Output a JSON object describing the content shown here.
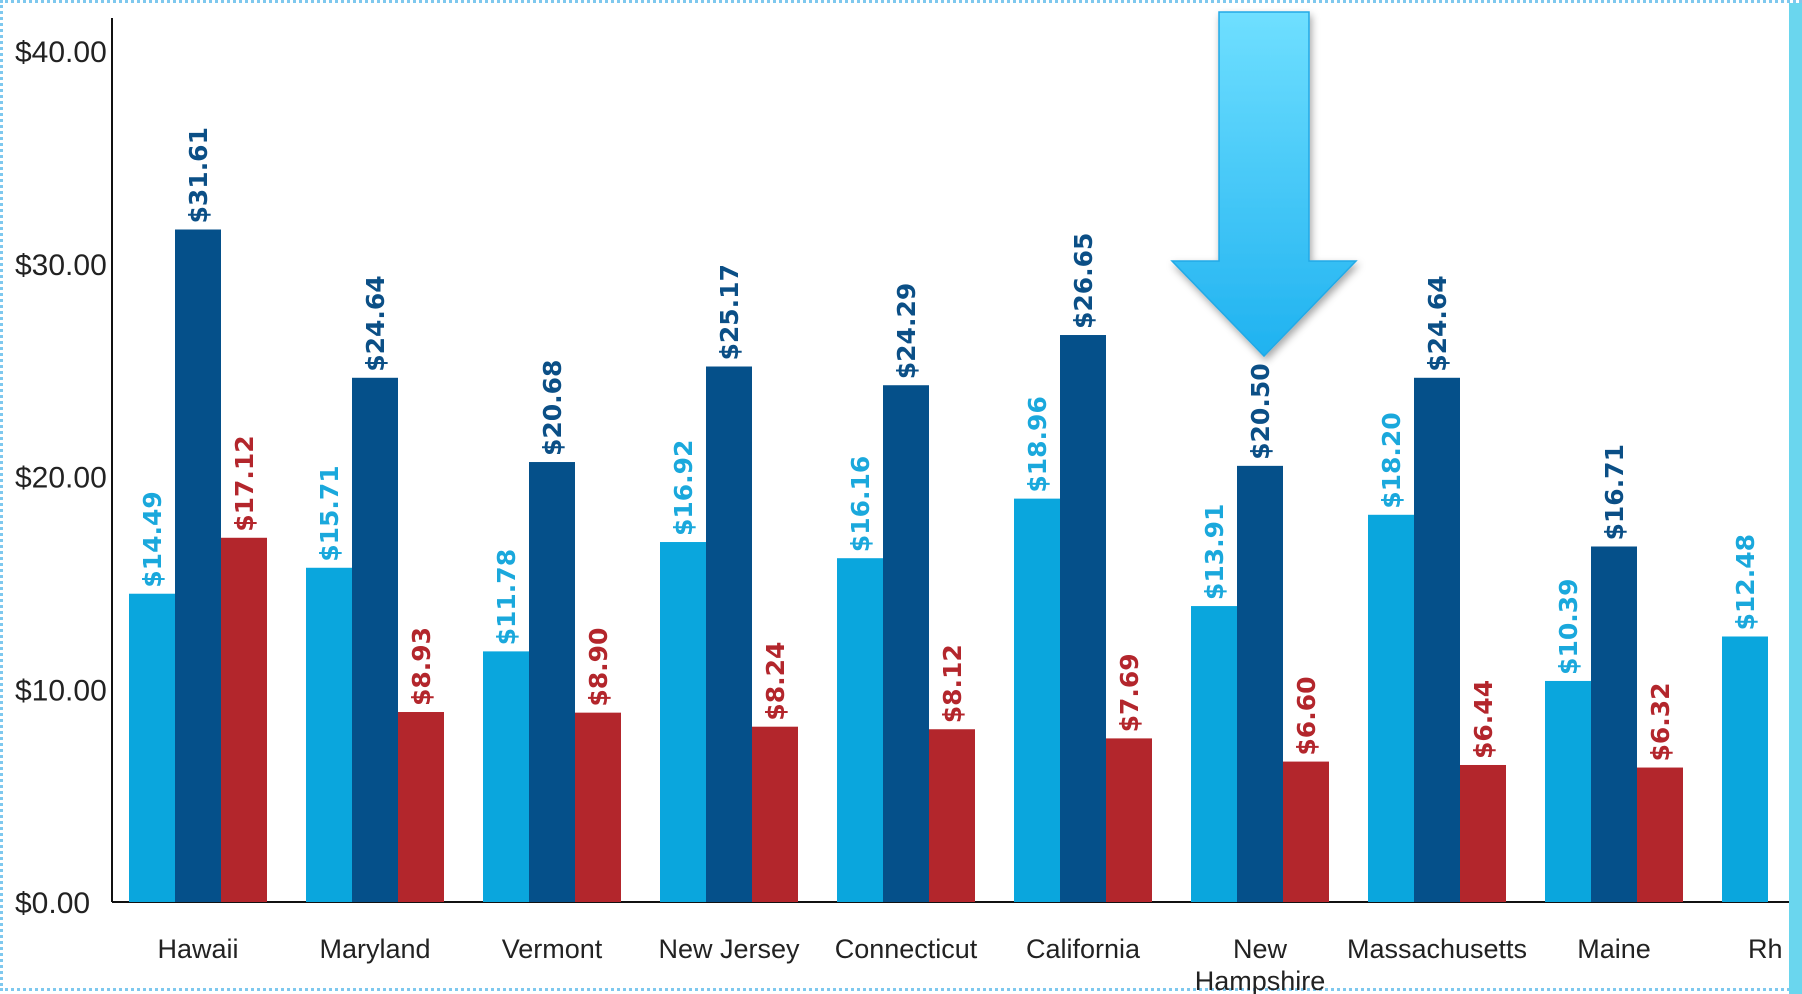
{
  "chart_data": {
    "type": "bar",
    "categories": [
      "Hawaii",
      "Maryland",
      "Vermont",
      "New Jersey",
      "Connecticut",
      "California",
      "New Hampshire",
      "Massachusetts",
      "Maine",
      "Rhode Island"
    ],
    "category_labels": [
      [
        "Hawaii"
      ],
      [
        "Maryland"
      ],
      [
        "Vermont"
      ],
      [
        "New Jersey"
      ],
      [
        "Connecticut"
      ],
      [
        "California"
      ],
      [
        "New",
        "Hampshire"
      ],
      [
        "Massachusetts"
      ],
      [
        "Maine"
      ],
      [
        "Rh"
      ]
    ],
    "series": [
      {
        "color": "#0aa6dd",
        "label_color": "#1aa8dc",
        "values": [
          14.49,
          15.71,
          11.78,
          16.92,
          16.16,
          18.96,
          13.91,
          18.2,
          10.39,
          12.48
        ],
        "labels": [
          "$14.49",
          "$15.71",
          "$11.78",
          "$16.92",
          "$16.16",
          "$18.96",
          "$13.91",
          "$18.20",
          "$10.39",
          "$12.48"
        ]
      },
      {
        "color": "#05508a",
        "label_color": "#0b4f86",
        "values": [
          31.61,
          24.64,
          20.68,
          25.17,
          24.29,
          26.65,
          20.5,
          24.64,
          16.71,
          null
        ],
        "labels": [
          "$31.61",
          "$24.64",
          "$20.68",
          "$25.17",
          "$24.29",
          "$26.65",
          "$20.50",
          "$24.64",
          "$16.71",
          ""
        ]
      },
      {
        "color": "#b3262c",
        "label_color": "#b3262c",
        "values": [
          17.12,
          8.93,
          8.9,
          8.24,
          8.12,
          7.69,
          6.6,
          6.44,
          6.32,
          null
        ],
        "labels": [
          "$17.12",
          "$8.93",
          "$8.90",
          "$8.24",
          "$8.12",
          "$7.69",
          "$6.60",
          "$6.44",
          "$6.32",
          ""
        ]
      }
    ],
    "ylim": [
      0,
      42
    ],
    "yticks": [
      0,
      10,
      20,
      30,
      40
    ],
    "ytick_labels": [
      "$0.00",
      "$10.00",
      "$20.00",
      "$30.00",
      "$40.00"
    ],
    "grid": false,
    "legend": "none",
    "annotation": {
      "type": "arrow",
      "target": "New Hampshire",
      "color": "#25b8f2"
    }
  }
}
